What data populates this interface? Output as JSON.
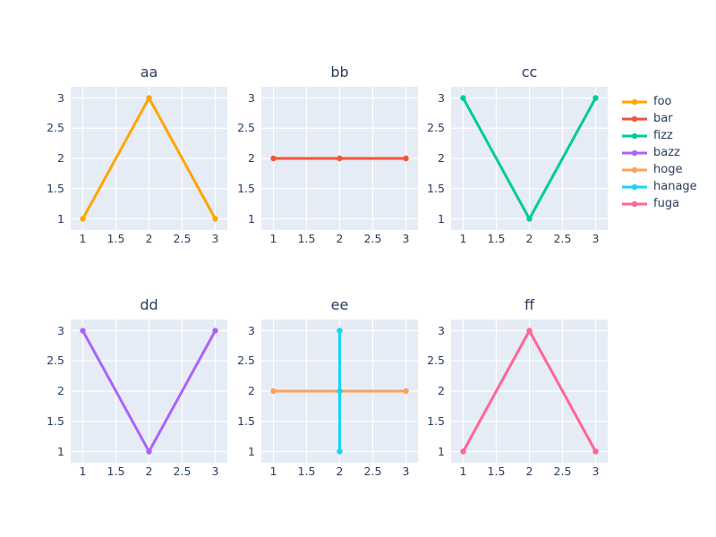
{
  "figure": {
    "background_color": "#ffffff",
    "plot_background_color": "#E5ECF6",
    "grid_color": "#ffffff",
    "text_color": "#2a3f5f"
  },
  "chart_data": {
    "type": "line",
    "layout": {
      "grid": {
        "rows": 2,
        "cols": 3
      },
      "legend_position": "right",
      "grid_on": true,
      "x_range": [
        0.82,
        3.18
      ],
      "y_range": [
        0.8,
        3.2
      ],
      "x_ticks": [
        1,
        1.5,
        2,
        2.5,
        3
      ],
      "y_ticks": [
        1,
        1.5,
        2,
        2.5,
        3
      ],
      "x_tick_labels": [
        "1",
        "1.5",
        "2",
        "2.5",
        "3"
      ],
      "y_tick_labels": [
        "1",
        "1.5",
        "2",
        "2.5",
        "3"
      ]
    },
    "subplots": [
      {
        "title": "aa",
        "series": [
          {
            "name": "foo",
            "color": "#FFA500",
            "x": [
              1,
              2,
              3
            ],
            "y": [
              1,
              3,
              1
            ]
          }
        ]
      },
      {
        "title": "bb",
        "series": [
          {
            "name": "bar",
            "color": "#EF553B",
            "x": [
              1,
              2,
              3
            ],
            "y": [
              2,
              2,
              2
            ]
          }
        ]
      },
      {
        "title": "cc",
        "series": [
          {
            "name": "fizz",
            "color": "#00CC96",
            "x": [
              1,
              2,
              3
            ],
            "y": [
              3,
              1,
              3
            ]
          }
        ]
      },
      {
        "title": "dd",
        "series": [
          {
            "name": "bazz",
            "color": "#AB63FA",
            "x": [
              1,
              2,
              3
            ],
            "y": [
              3,
              1,
              3
            ]
          }
        ]
      },
      {
        "title": "ee",
        "series": [
          {
            "name": "hoge",
            "color": "#FFA15A",
            "x": [
              1,
              2,
              3
            ],
            "y": [
              2,
              2,
              2
            ]
          },
          {
            "name": "hanage",
            "color": "#19D3F3",
            "x": [
              2,
              2,
              2
            ],
            "y": [
              1,
              2,
              3
            ]
          }
        ]
      },
      {
        "title": "ff",
        "series": [
          {
            "name": "fuga",
            "color": "#FF6692",
            "x": [
              1,
              2,
              3
            ],
            "y": [
              1,
              3,
              1
            ]
          }
        ]
      }
    ],
    "legend": [
      {
        "label": "foo",
        "color": "#FFA500"
      },
      {
        "label": "bar",
        "color": "#EF553B"
      },
      {
        "label": "fizz",
        "color": "#00CC96"
      },
      {
        "label": "bazz",
        "color": "#AB63FA"
      },
      {
        "label": "hoge",
        "color": "#FFA15A"
      },
      {
        "label": "hanage",
        "color": "#19D3F3"
      },
      {
        "label": "fuga",
        "color": "#FF6692"
      }
    ]
  }
}
